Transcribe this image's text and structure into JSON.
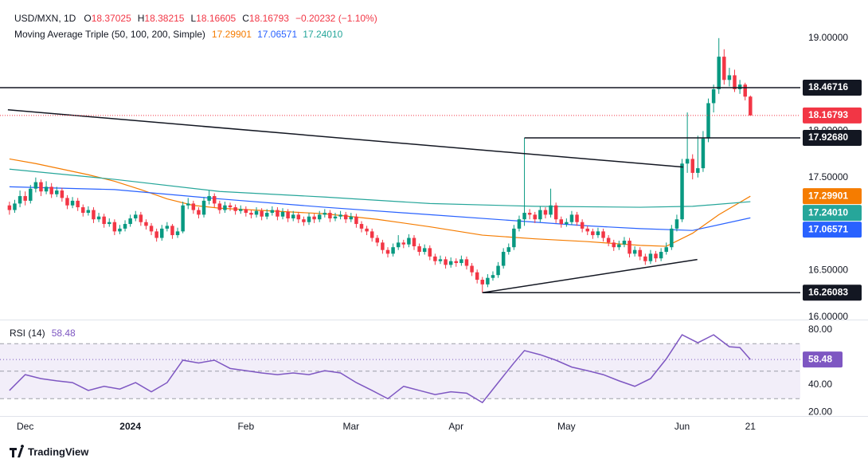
{
  "chart_data": [
    {
      "type": "candlestick",
      "title": "USD/MXN, 1D",
      "ohlc_labels": [
        "O",
        "H",
        "L",
        "C"
      ],
      "change": "−0.20232 (−1.10%)",
      "up_color": "#089981",
      "down_color": "#f23645",
      "xlim": [
        -1.8,
        150.5
      ],
      "xticks": [
        {
          "value": 3,
          "label": "Dec"
        },
        {
          "value": 23,
          "label": "2024"
        },
        {
          "value": 45,
          "label": "Feb"
        },
        {
          "value": 65,
          "label": "Mar"
        },
        {
          "value": 85,
          "label": "Apr"
        },
        {
          "value": 106,
          "label": "May"
        },
        {
          "value": 128,
          "label": "Jun"
        },
        {
          "value": 141,
          "label": "21"
        }
      ],
      "ylim": [
        15.98,
        19.41
      ],
      "yticks": [
        {
          "value": 16,
          "label": "16.00000"
        },
        {
          "value": 16.5,
          "label": "16.50000"
        },
        {
          "value": 17.5,
          "label": "17.50000"
        },
        {
          "value": 18,
          "label": "18.00000"
        },
        {
          "value": 19,
          "label": "19.00000"
        }
      ],
      "ohlc": [
        [
          17.2,
          17.24,
          17.1,
          17.15
        ],
        [
          17.15,
          17.26,
          17.12,
          17.22
        ],
        [
          17.22,
          17.36,
          17.18,
          17.3
        ],
        [
          17.3,
          17.35,
          17.2,
          17.25
        ],
        [
          17.25,
          17.42,
          17.22,
          17.38
        ],
        [
          17.38,
          17.5,
          17.34,
          17.45
        ],
        [
          17.45,
          17.48,
          17.3,
          17.35
        ],
        [
          17.35,
          17.46,
          17.32,
          17.4
        ],
        [
          17.4,
          17.44,
          17.28,
          17.32
        ],
        [
          17.32,
          17.4,
          17.29,
          17.36
        ],
        [
          17.36,
          17.39,
          17.24,
          17.28
        ],
        [
          17.28,
          17.31,
          17.16,
          17.2
        ],
        [
          17.2,
          17.29,
          17.17,
          17.25
        ],
        [
          17.25,
          17.28,
          17.14,
          17.18
        ],
        [
          17.18,
          17.21,
          17.08,
          17.12
        ],
        [
          17.12,
          17.19,
          17.09,
          17.15
        ],
        [
          17.15,
          17.18,
          17.01,
          17.05
        ],
        [
          17.05,
          17.12,
          17.02,
          17.08
        ],
        [
          17.08,
          17.11,
          16.96,
          17.0
        ],
        [
          17.0,
          17.06,
          16.97,
          17.02
        ],
        [
          17.02,
          17.05,
          16.88,
          16.92
        ],
        [
          16.92,
          16.99,
          16.89,
          16.95
        ],
        [
          16.95,
          17.04,
          16.92,
          17.0
        ],
        [
          17.0,
          17.1,
          16.97,
          17.06
        ],
        [
          17.06,
          17.14,
          17.03,
          17.1
        ],
        [
          17.1,
          17.13,
          16.98,
          17.02
        ],
        [
          17.02,
          17.05,
          16.94,
          16.98
        ],
        [
          16.98,
          17.01,
          16.88,
          16.92
        ],
        [
          16.92,
          16.95,
          16.81,
          16.85
        ],
        [
          16.85,
          16.99,
          16.82,
          16.95
        ],
        [
          16.95,
          17.02,
          16.92,
          16.98
        ],
        [
          16.98,
          17.0,
          16.84,
          16.88
        ],
        [
          16.88,
          16.96,
          16.85,
          16.92
        ],
        [
          16.92,
          17.24,
          16.9,
          17.2
        ],
        [
          17.2,
          17.28,
          17.16,
          17.22
        ],
        [
          17.22,
          17.25,
          17.11,
          17.15
        ],
        [
          17.15,
          17.18,
          17.06,
          17.1
        ],
        [
          17.1,
          17.29,
          17.07,
          17.25
        ],
        [
          17.25,
          17.36,
          17.21,
          17.3
        ],
        [
          17.3,
          17.33,
          17.18,
          17.22
        ],
        [
          17.22,
          17.25,
          17.11,
          17.15
        ],
        [
          17.15,
          17.24,
          17.12,
          17.2
        ],
        [
          17.2,
          17.23,
          17.14,
          17.18
        ],
        [
          17.18,
          17.21,
          17.1,
          17.14
        ],
        [
          17.14,
          17.2,
          17.11,
          17.16
        ],
        [
          17.16,
          17.19,
          17.08,
          17.12
        ],
        [
          17.12,
          17.15,
          17.06,
          17.1
        ],
        [
          17.1,
          17.18,
          17.07,
          17.14
        ],
        [
          17.14,
          17.17,
          17.04,
          17.08
        ],
        [
          17.08,
          17.16,
          17.05,
          17.12
        ],
        [
          17.12,
          17.19,
          17.09,
          17.15
        ],
        [
          17.15,
          17.18,
          17.04,
          17.08
        ],
        [
          17.08,
          17.17,
          17.05,
          17.13
        ],
        [
          17.13,
          17.16,
          17.02,
          17.06
        ],
        [
          17.06,
          17.14,
          17.03,
          17.1
        ],
        [
          17.1,
          17.13,
          17.01,
          17.05
        ],
        [
          17.05,
          17.08,
          16.98,
          17.02
        ],
        [
          17.02,
          17.12,
          16.99,
          17.08
        ],
        [
          17.08,
          17.11,
          17.01,
          17.05
        ],
        [
          17.05,
          17.14,
          17.02,
          17.1
        ],
        [
          17.1,
          17.16,
          17.07,
          17.12
        ],
        [
          17.12,
          17.15,
          17.02,
          17.06
        ],
        [
          17.06,
          17.12,
          17.03,
          17.08
        ],
        [
          17.08,
          17.14,
          17.05,
          17.1
        ],
        [
          17.1,
          17.13,
          17.01,
          17.05
        ],
        [
          17.05,
          17.12,
          17.02,
          17.08
        ],
        [
          17.08,
          17.11,
          16.96,
          17.0
        ],
        [
          17.0,
          17.03,
          16.91,
          16.95
        ],
        [
          16.95,
          16.98,
          16.88,
          16.92
        ],
        [
          16.92,
          16.95,
          16.81,
          16.85
        ],
        [
          16.85,
          16.88,
          16.76,
          16.8
        ],
        [
          16.8,
          16.83,
          16.68,
          16.72
        ],
        [
          16.72,
          16.75,
          16.64,
          16.68
        ],
        [
          16.68,
          16.79,
          16.65,
          16.75
        ],
        [
          16.75,
          16.88,
          16.72,
          16.8
        ],
        [
          16.8,
          16.83,
          16.74,
          16.78
        ],
        [
          16.78,
          16.89,
          16.75,
          16.85
        ],
        [
          16.85,
          16.88,
          16.72,
          16.76
        ],
        [
          16.76,
          16.79,
          16.66,
          16.7
        ],
        [
          16.7,
          16.78,
          16.67,
          16.74
        ],
        [
          16.74,
          16.77,
          16.61,
          16.65
        ],
        [
          16.65,
          16.68,
          16.56,
          16.6
        ],
        [
          16.6,
          16.66,
          16.57,
          16.62
        ],
        [
          16.62,
          16.65,
          16.52,
          16.56
        ],
        [
          16.56,
          16.64,
          16.53,
          16.6
        ],
        [
          16.6,
          16.63,
          16.54,
          16.58
        ],
        [
          16.58,
          16.66,
          16.55,
          16.62
        ],
        [
          16.62,
          16.65,
          16.51,
          16.55
        ],
        [
          16.55,
          16.58,
          16.44,
          16.48
        ],
        [
          16.48,
          16.51,
          16.36,
          16.4
        ],
        [
          16.4,
          16.43,
          16.26083,
          16.35
        ],
        [
          16.35,
          16.46,
          16.32,
          16.42
        ],
        [
          16.42,
          16.49,
          16.39,
          16.45
        ],
        [
          16.45,
          16.59,
          16.42,
          16.55
        ],
        [
          16.55,
          16.74,
          16.52,
          16.7
        ],
        [
          16.7,
          16.79,
          16.67,
          16.75
        ],
        [
          16.75,
          16.99,
          16.72,
          16.95
        ],
        [
          16.95,
          17.09,
          16.92,
          17.05
        ],
        [
          17.05,
          17.9268,
          16.98,
          17.12
        ],
        [
          17.12,
          17.16,
          17.05,
          17.1
        ],
        [
          17.1,
          17.13,
          17.01,
          17.05
        ],
        [
          17.05,
          17.19,
          17.02,
          17.15
        ],
        [
          17.15,
          17.18,
          17.06,
          17.1
        ],
        [
          17.1,
          17.38,
          17.07,
          17.2
        ],
        [
          17.2,
          17.23,
          17.01,
          17.05
        ],
        [
          17.05,
          17.08,
          16.96,
          17.0
        ],
        [
          17.0,
          17.06,
          16.97,
          17.02
        ],
        [
          17.02,
          17.14,
          16.99,
          17.1
        ],
        [
          17.1,
          17.13,
          16.98,
          17.02
        ],
        [
          17.02,
          17.05,
          16.91,
          16.95
        ],
        [
          16.95,
          16.98,
          16.88,
          16.92
        ],
        [
          16.92,
          16.95,
          16.84,
          16.88
        ],
        [
          16.88,
          16.96,
          16.85,
          16.92
        ],
        [
          16.92,
          16.95,
          16.81,
          16.85
        ],
        [
          16.85,
          16.88,
          16.76,
          16.8
        ],
        [
          16.8,
          16.83,
          16.71,
          16.75
        ],
        [
          16.75,
          16.82,
          16.72,
          16.78
        ],
        [
          16.78,
          16.86,
          16.75,
          16.82
        ],
        [
          16.82,
          16.85,
          16.64,
          16.68
        ],
        [
          16.68,
          16.76,
          16.65,
          16.72
        ],
        [
          16.72,
          16.75,
          16.61,
          16.65
        ],
        [
          16.65,
          16.68,
          16.56,
          16.6
        ],
        [
          16.6,
          16.72,
          16.57,
          16.68
        ],
        [
          16.68,
          16.71,
          16.59,
          16.63
        ],
        [
          16.63,
          16.74,
          16.6,
          16.7
        ],
        [
          16.7,
          16.8,
          16.67,
          16.75
        ],
        [
          16.75,
          16.99,
          16.72,
          16.95
        ],
        [
          16.95,
          17.1,
          16.92,
          17.05
        ],
        [
          17.05,
          17.7,
          17.02,
          17.65
        ],
        [
          17.65,
          18.2,
          17.55,
          17.7
        ],
        [
          17.7,
          17.75,
          17.48,
          17.55
        ],
        [
          17.55,
          17.95,
          17.5,
          17.6
        ],
        [
          17.6,
          18.0,
          17.56,
          17.92
        ],
        [
          17.92,
          18.35,
          17.88,
          18.3
        ],
        [
          18.3,
          18.5,
          18.2,
          18.45
        ],
        [
          18.45,
          19.0,
          18.4,
          18.8
        ],
        [
          18.8,
          18.88,
          18.5,
          18.55
        ],
        [
          18.55,
          18.68,
          18.48,
          18.6
        ],
        [
          18.6,
          18.66,
          18.42,
          18.45
        ],
        [
          18.45,
          18.55,
          18.4,
          18.5
        ],
        [
          18.5,
          18.52,
          18.33,
          18.37025
        ],
        [
          18.37025,
          18.38215,
          18.16605,
          18.16793
        ]
      ],
      "moving_averages": {
        "title": "Moving Average Triple (50, 100, 200, Simple)",
        "lines": [
          {
            "color": "#f57c00",
            "last_label": "17.29901",
            "x": [
              0,
              5,
              10,
              15,
              20,
              25,
              30,
              35,
              40,
              50,
              60,
              70,
              80,
              90,
              100,
              110,
              120,
              125,
              130,
              135,
              141
            ],
            "values": [
              17.7,
              17.65,
              17.59,
              17.53,
              17.46,
              17.37,
              17.27,
              17.2,
              17.17,
              17.14,
              17.11,
              17.05,
              16.97,
              16.88,
              16.84,
              16.81,
              16.77,
              16.76,
              16.9,
              17.1,
              17.29901
            ]
          },
          {
            "color": "#2962ff",
            "last_label": "17.06571",
            "x": [
              0,
              20,
              40,
              60,
              80,
              100,
              110,
              120,
              130,
              141
            ],
            "values": [
              17.4,
              17.37,
              17.27,
              17.18,
              17.1,
              17.02,
              16.98,
              16.95,
              16.93,
              17.06571
            ]
          },
          {
            "color": "#26a69a",
            "last_label": "17.24010",
            "x": [
              0,
              20,
              40,
              60,
              80,
              100,
              120,
              130,
              141
            ],
            "values": [
              17.59,
              17.48,
              17.35,
              17.29,
              17.22,
              17.19,
              17.18,
              17.19,
              17.2401
            ]
          }
        ]
      },
      "levels": [
        {
          "value": 18.46716,
          "label": "18.46716",
          "x_start": -1.8
        },
        {
          "value": 17.9268,
          "label": "17.92680",
          "x_start": 98
        },
        {
          "value": 16.26083,
          "label": "16.26083",
          "x_start": 90
        }
      ],
      "trendlines": [
        {
          "x": [
            -0.3,
            128.2
          ],
          "y": [
            18.229,
            17.612
          ]
        },
        {
          "x": [
            90,
            130.9
          ],
          "y": [
            16.26083,
            16.618
          ]
        }
      ]
    },
    {
      "type": "line",
      "title": "RSI (14)",
      "color": "#7e57c2",
      "xlim": [
        -1.8,
        150.5
      ],
      "ylim": [
        17.4,
        87
      ],
      "yticks": [
        {
          "value": 20,
          "label": "20.00"
        },
        {
          "value": 40,
          "label": "40.00"
        },
        {
          "value": 80,
          "label": "80.00"
        }
      ],
      "bands": [
        30,
        50,
        70
      ],
      "x": [
        0,
        3,
        6,
        9,
        12,
        15,
        18,
        21,
        24,
        27,
        30,
        33,
        36,
        39,
        42,
        45,
        48,
        51,
        54,
        57,
        60,
        63,
        66,
        69,
        72,
        75,
        78,
        81,
        84,
        87,
        90,
        93,
        96,
        98,
        101,
        104,
        107,
        110,
        113,
        116,
        119,
        122,
        125,
        128,
        131,
        134,
        137,
        139,
        141
      ],
      "values": [
        36,
        47.5,
        44.6,
        43,
        41.7,
        36,
        39,
        37,
        41.7,
        35,
        41.7,
        58,
        56,
        58,
        52,
        50.4,
        48.7,
        47.5,
        48.7,
        47.5,
        50.4,
        48.7,
        41.7,
        36,
        30,
        39,
        36,
        33,
        35,
        34,
        27.2,
        41.7,
        56,
        65,
        62,
        58,
        53,
        50.4,
        47.5,
        43,
        39,
        44.6,
        59,
        76.5,
        70.7,
        76.5,
        67.8,
        67.2,
        58.48
      ]
    }
  ],
  "footer": {
    "brand": "TradingView"
  }
}
